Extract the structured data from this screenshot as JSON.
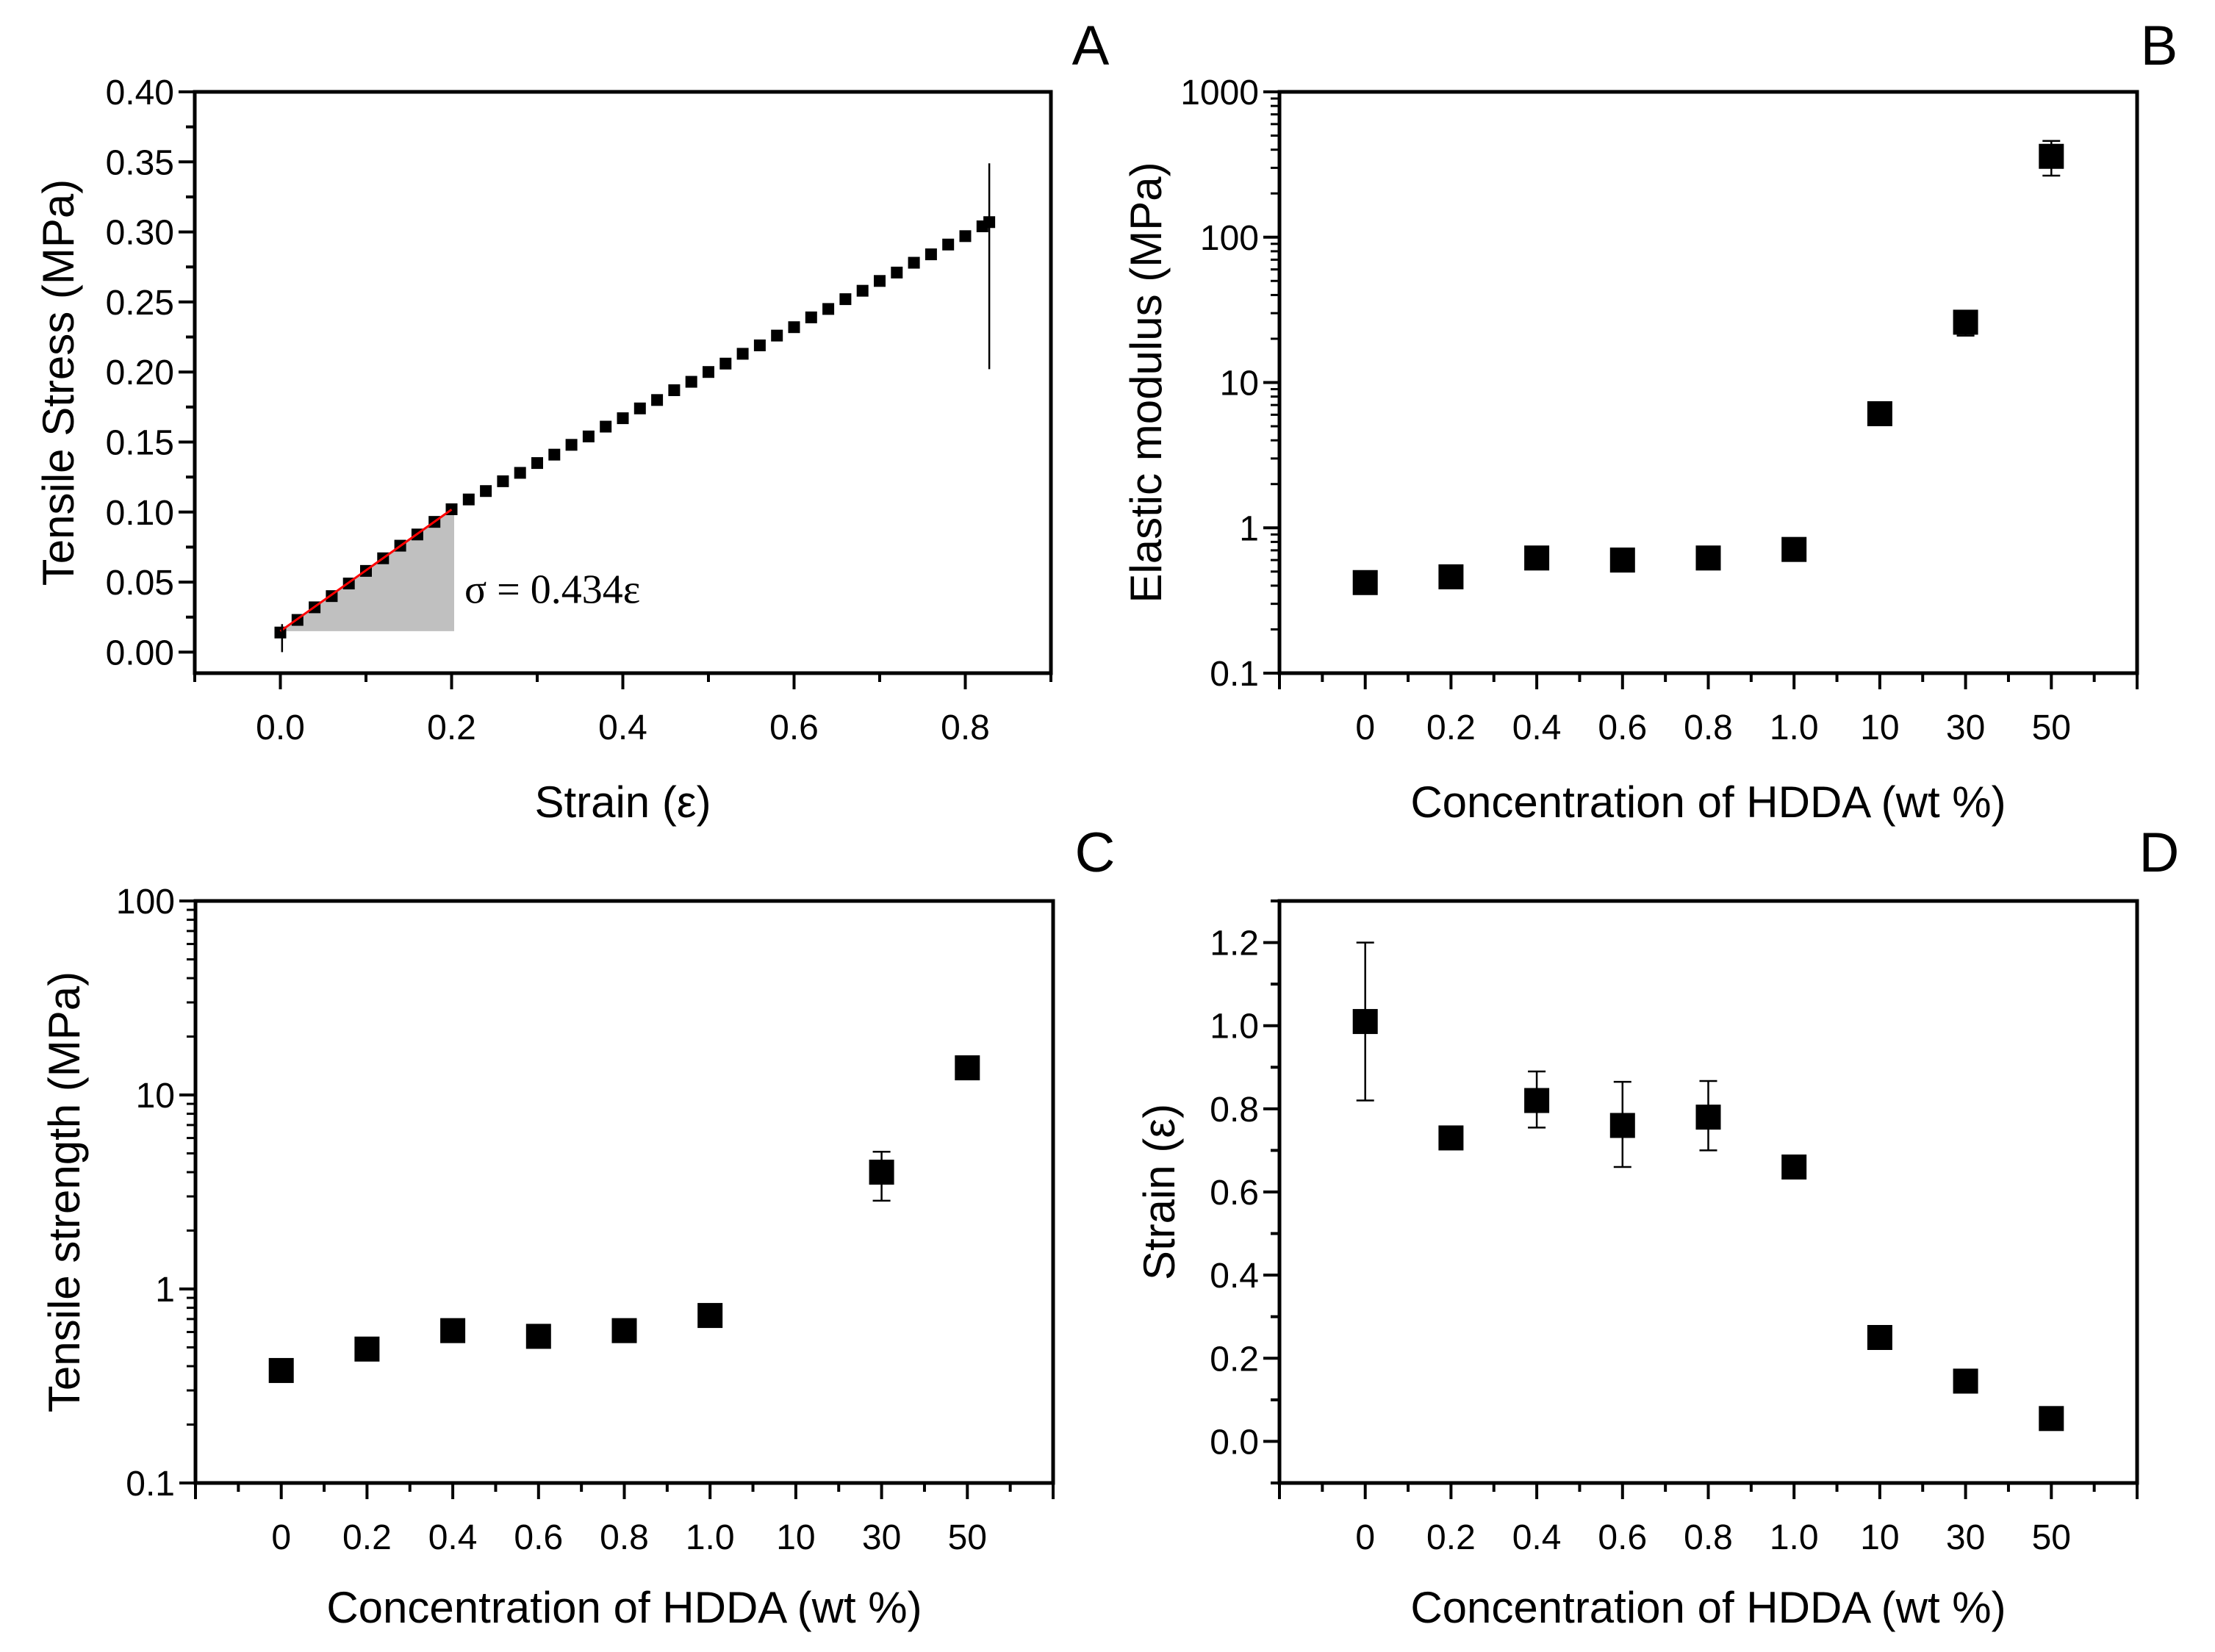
{
  "chart_data": [
    {
      "panel": "A",
      "type": "scatter",
      "xlabel": "Strain (ε)",
      "ylabel": "Tensile Stress (MPa)",
      "xlim": [
        -0.1,
        0.9
      ],
      "ylim": [
        -0.015,
        0.4
      ],
      "xticks": [
        "0.0",
        "0.2",
        "0.4",
        "0.6",
        "0.8"
      ],
      "xtick_values": [
        0,
        0.2,
        0.4,
        0.6,
        0.8
      ],
      "yticks": [
        "0.00",
        "0.05",
        "0.10",
        "0.15",
        "0.20",
        "0.25",
        "0.30",
        "0.35",
        "0.40"
      ],
      "ytick_values": [
        0,
        0.05,
        0.1,
        0.15,
        0.2,
        0.25,
        0.3,
        0.35,
        0.4
      ],
      "x": [
        0,
        0.02,
        0.04,
        0.06,
        0.08,
        0.1,
        0.12,
        0.14,
        0.16,
        0.18,
        0.2,
        0.22,
        0.24,
        0.26,
        0.28,
        0.3,
        0.32,
        0.34,
        0.36,
        0.38,
        0.4,
        0.42,
        0.44,
        0.46,
        0.48,
        0.5,
        0.52,
        0.54,
        0.56,
        0.58,
        0.6,
        0.62,
        0.64,
        0.66,
        0.68,
        0.7,
        0.72,
        0.74,
        0.76,
        0.78,
        0.8,
        0.82,
        0.828
      ],
      "y": [
        0.014,
        0.023,
        0.032,
        0.04,
        0.049,
        0.058,
        0.067,
        0.076,
        0.084,
        0.093,
        0.102,
        0.109,
        0.115,
        0.122,
        0.128,
        0.135,
        0.141,
        0.148,
        0.154,
        0.161,
        0.167,
        0.174,
        0.18,
        0.187,
        0.193,
        0.2,
        0.206,
        0.213,
        0.219,
        0.226,
        0.232,
        0.239,
        0.245,
        0.252,
        0.258,
        0.265,
        0.271,
        0.278,
        0.284,
        0.291,
        0.297,
        0.304,
        0.307
      ],
      "fit_line": {
        "x": [
          0,
          0.2
        ],
        "y": [
          0.015,
          0.1018
        ],
        "color": "#ff0000"
      },
      "fit_area": {
        "x": [
          0,
          0.203,
          0.203
        ],
        "y": [
          0.015,
          0.104,
          0.015
        ],
        "color": "#c0c0c0"
      },
      "break_line": {
        "x": 0.828,
        "y": [
          0.202,
          0.349
        ]
      },
      "annotation": "σ = 0.434ε",
      "annotation_at": [
        0.215,
        0.035
      ]
    },
    {
      "panel": "B",
      "type": "scatter",
      "yscale": "log",
      "xlabel": "Concentration of HDDA (wt %)",
      "ylabel": "Elastic modulus (MPa)",
      "categories": [
        "0",
        "0.2",
        "0.4",
        "0.6",
        "0.8",
        "1.0",
        "10",
        "30",
        "50"
      ],
      "ylim": [
        0.1,
        1000
      ],
      "yticks": [
        "0.1",
        "1",
        "10",
        "100",
        "1000"
      ],
      "ytick_values": [
        0.1,
        1,
        10,
        100,
        1000
      ],
      "points": [
        {
          "cat": 0,
          "y": 0.42
        },
        {
          "cat": 1,
          "y": 0.46
        },
        {
          "cat": 2,
          "y": 0.62
        },
        {
          "cat": 3,
          "y": 0.6
        },
        {
          "cat": 4,
          "y": 0.62
        },
        {
          "cat": 5,
          "y": 0.71
        },
        {
          "cat": 6,
          "y": 6.1
        },
        {
          "cat": 7,
          "y": 26,
          "err": [
            21,
            31
          ]
        },
        {
          "cat": 8,
          "y": 360,
          "err": [
            265,
            460
          ]
        }
      ]
    },
    {
      "panel": "C",
      "type": "scatter",
      "yscale": "log",
      "xlabel": "Concentration of HDDA (wt %)",
      "ylabel": "Tensile strength (MPa)",
      "categories": [
        "0",
        "0.2",
        "0.4",
        "0.6",
        "0.8",
        "1.0",
        "10",
        "30",
        "50"
      ],
      "ylim": [
        0.1,
        100
      ],
      "yticks": [
        "0.1",
        "1",
        "10",
        "100"
      ],
      "ytick_values": [
        0.1,
        1,
        10,
        100
      ],
      "points": [
        {
          "cat": 0,
          "y": 0.38
        },
        {
          "cat": 1,
          "y": 0.49
        },
        {
          "cat": 2,
          "y": 0.61
        },
        {
          "cat": 3,
          "y": 0.57
        },
        {
          "cat": 4,
          "y": 0.61
        },
        {
          "cat": 5,
          "y": 0.73
        },
        {
          "cat": 7,
          "y": 4.0,
          "err": [
            2.85,
            5.1
          ]
        },
        {
          "cat": 8,
          "y": 13.8
        }
      ]
    },
    {
      "panel": "D",
      "type": "scatter",
      "xlabel": "Concentration of HDDA (wt %)",
      "ylabel": "Strain (ε)",
      "categories": [
        "0",
        "0.2",
        "0.4",
        "0.6",
        "0.8",
        "1.0",
        "10",
        "30",
        "50"
      ],
      "ylim": [
        -0.1,
        1.3
      ],
      "yticks": [
        "0.0",
        "0.2",
        "0.4",
        "0.6",
        "0.8",
        "1.0",
        "1.2"
      ],
      "ytick_values": [
        0,
        0.2,
        0.4,
        0.6,
        0.8,
        1.0,
        1.2
      ],
      "points": [
        {
          "cat": 0,
          "y": 1.01,
          "err": [
            0.82,
            1.2
          ]
        },
        {
          "cat": 1,
          "y": 0.73
        },
        {
          "cat": 2,
          "y": 0.82,
          "err": [
            0.755,
            0.89
          ]
        },
        {
          "cat": 3,
          "y": 0.76,
          "err": [
            0.66,
            0.865
          ]
        },
        {
          "cat": 4,
          "y": 0.78,
          "err": [
            0.7,
            0.867
          ]
        },
        {
          "cat": 5,
          "y": 0.66
        },
        {
          "cat": 6,
          "y": 0.25
        },
        {
          "cat": 7,
          "y": 0.145
        },
        {
          "cat": 8,
          "y": 0.055
        }
      ]
    }
  ]
}
